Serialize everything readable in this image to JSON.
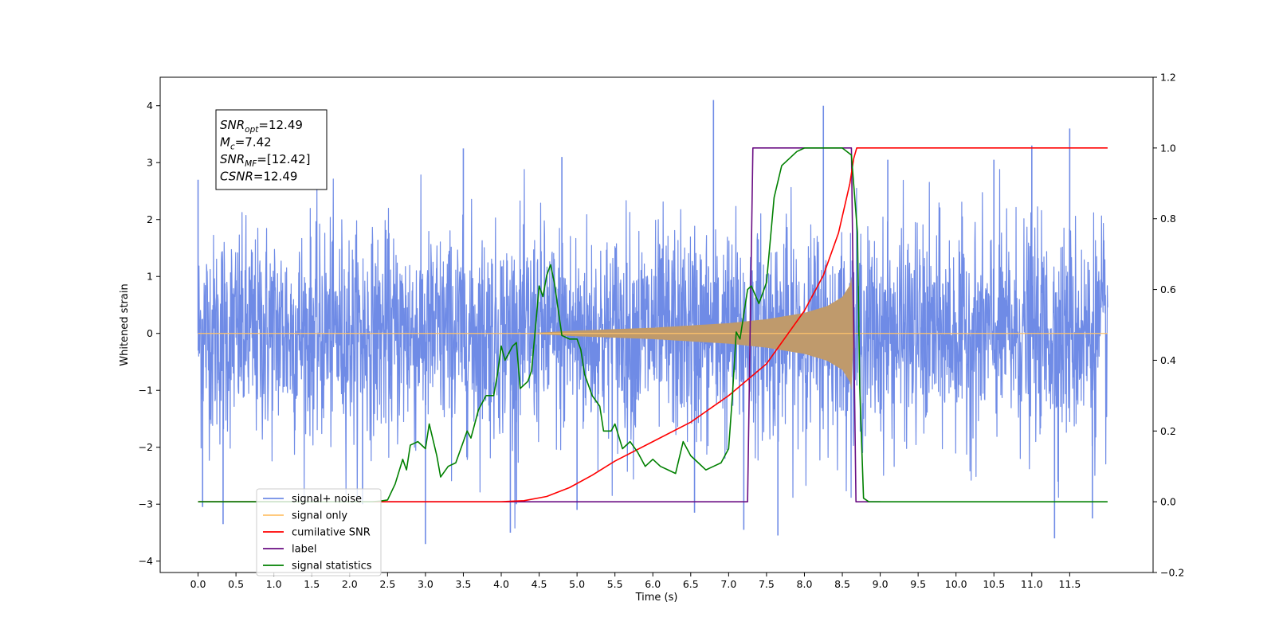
{
  "chart_data": {
    "type": "line",
    "xlabel": "Time (s)",
    "ylabel": "Whitened strain",
    "ylabel_right": "",
    "xlim": [
      -0.5,
      12.6
    ],
    "ylim": [
      -4.2,
      4.5
    ],
    "ylim_right": [
      -0.2,
      1.2
    ],
    "x_ticks": [
      0.0,
      0.5,
      1.0,
      1.5,
      2.0,
      2.5,
      3.0,
      3.5,
      4.0,
      4.5,
      5.0,
      5.5,
      6.0,
      6.5,
      7.0,
      7.5,
      8.0,
      8.5,
      9.0,
      9.5,
      10.0,
      10.5,
      11.0,
      11.5
    ],
    "x_tick_labels": [
      "0.0",
      "0.5",
      "1.0",
      "1.5",
      "2.0",
      "2.5",
      "3.0",
      "3.5",
      "4.0",
      "4.5",
      "5.0",
      "5.5",
      "6.0",
      "6.5",
      "7.0",
      "7.5",
      "8.0",
      "8.5",
      "9.0",
      "9.5",
      "10.0",
      "10.5",
      "11.0",
      "11.5"
    ],
    "y_ticks": [
      -4,
      -3,
      -2,
      -1,
      0,
      1,
      2,
      3,
      4
    ],
    "y_tick_labels": [
      "−4",
      "−3",
      "−2",
      "−1",
      "0",
      "1",
      "2",
      "3",
      "4"
    ],
    "y_right_ticks": [
      -0.2,
      0.0,
      0.2,
      0.4,
      0.6,
      0.8,
      1.0,
      1.2
    ],
    "y_right_tick_labels": [
      "−0.2",
      "0.0",
      "0.2",
      "0.4",
      "0.6",
      "0.8",
      "1.0",
      "1.2"
    ],
    "grid": false,
    "legend_position": "lower-left",
    "annotation_box": {
      "lines": [
        {
          "base": "SNR",
          "sub": "opt",
          "rest": "=12.49"
        },
        {
          "base": "M",
          "sub": "c",
          "rest": "=7.42"
        },
        {
          "base": "SNR",
          "sub": "MF",
          "rest": "=[12.42]"
        },
        {
          "base": "CSNR",
          "sub": "",
          "rest": "=12.49"
        }
      ]
    },
    "series": [
      {
        "name": "signal+ noise",
        "color": "#6f8be6",
        "axis": "left",
        "description_of_shape": "dense noise around 0, amplitude ~1.8 typical with spikes up to 4.1, from t=0 to t=12",
        "x_range": [
          0.0,
          12.0
        ],
        "noise_amplitude": 1.8,
        "spikes": [
          {
            "x": 0.0,
            "y": 2.7
          },
          {
            "x": 0.06,
            "y": -3.05
          },
          {
            "x": 0.33,
            "y": -3.35
          },
          {
            "x": 2.17,
            "y": -3.0
          },
          {
            "x": 3.0,
            "y": -3.7
          },
          {
            "x": 3.5,
            "y": 3.25
          },
          {
            "x": 4.12,
            "y": -3.5
          },
          {
            "x": 4.2,
            "y": -3.0
          },
          {
            "x": 4.8,
            "y": 3.1
          },
          {
            "x": 5.0,
            "y": -3.1
          },
          {
            "x": 6.8,
            "y": 4.1
          },
          {
            "x": 6.55,
            "y": -3.15
          },
          {
            "x": 7.2,
            "y": -3.45
          },
          {
            "x": 7.65,
            "y": -3.55
          },
          {
            "x": 8.25,
            "y": 4.0
          },
          {
            "x": 9.1,
            "y": 3.05
          },
          {
            "x": 10.5,
            "y": 3.05
          },
          {
            "x": 11.0,
            "y": 3.3
          },
          {
            "x": 11.5,
            "y": 3.6
          },
          {
            "x": 11.3,
            "y": -3.6
          },
          {
            "x": 11.8,
            "y": -3.25
          }
        ]
      },
      {
        "name": "signal only",
        "color": "#ffc36b",
        "fill_color": "#bf9a6c",
        "axis": "left",
        "description_of_shape": "chirp envelope near 0 growing from t~4.3 to amplitude ~1.0 at t~8.62, then abruptly zero",
        "envelope": [
          [
            0.0,
            0.0
          ],
          [
            4.3,
            0.0
          ],
          [
            5.0,
            0.05
          ],
          [
            6.0,
            0.1
          ],
          [
            7.0,
            0.18
          ],
          [
            7.5,
            0.25
          ],
          [
            8.0,
            0.36
          ],
          [
            8.3,
            0.48
          ],
          [
            8.5,
            0.64
          ],
          [
            8.6,
            0.85
          ],
          [
            8.62,
            1.0
          ],
          [
            8.65,
            0.0
          ],
          [
            12.0,
            0.0
          ]
        ]
      },
      {
        "name": "cumilative SNR",
        "color": "#ff0000",
        "axis": "right",
        "points": [
          [
            0.0,
            0.0
          ],
          [
            4.0,
            0.0
          ],
          [
            4.3,
            0.003
          ],
          [
            4.6,
            0.015
          ],
          [
            4.9,
            0.04
          ],
          [
            5.2,
            0.075
          ],
          [
            5.5,
            0.115
          ],
          [
            6.0,
            0.17
          ],
          [
            6.5,
            0.225
          ],
          [
            7.0,
            0.3
          ],
          [
            7.5,
            0.39
          ],
          [
            8.0,
            0.54
          ],
          [
            8.25,
            0.64
          ],
          [
            8.45,
            0.76
          ],
          [
            8.6,
            0.9
          ],
          [
            8.65,
            0.97
          ],
          [
            8.69,
            1.0
          ],
          [
            12.0,
            1.0
          ]
        ]
      },
      {
        "name": "label",
        "color": "#6a0d83",
        "axis": "right",
        "points": [
          [
            0.0,
            0.0
          ],
          [
            7.25,
            0.0
          ],
          [
            7.32,
            1.0
          ],
          [
            8.62,
            1.0
          ],
          [
            8.68,
            0.0
          ],
          [
            9.0,
            0.0
          ]
        ]
      },
      {
        "name": "signal statistics",
        "color": "#008000",
        "axis": "right",
        "points": [
          [
            0.0,
            0.0
          ],
          [
            2.3,
            0.0
          ],
          [
            2.4,
            0.002
          ],
          [
            2.5,
            0.005
          ],
          [
            2.6,
            0.05
          ],
          [
            2.7,
            0.12
          ],
          [
            2.75,
            0.09
          ],
          [
            2.8,
            0.16
          ],
          [
            2.9,
            0.17
          ],
          [
            3.0,
            0.15
          ],
          [
            3.05,
            0.22
          ],
          [
            3.15,
            0.13
          ],
          [
            3.2,
            0.07
          ],
          [
            3.3,
            0.1
          ],
          [
            3.4,
            0.11
          ],
          [
            3.5,
            0.17
          ],
          [
            3.55,
            0.2
          ],
          [
            3.6,
            0.18
          ],
          [
            3.7,
            0.26
          ],
          [
            3.8,
            0.3
          ],
          [
            3.9,
            0.3
          ],
          [
            3.95,
            0.36
          ],
          [
            4.0,
            0.44
          ],
          [
            4.05,
            0.4
          ],
          [
            4.15,
            0.44
          ],
          [
            4.2,
            0.45
          ],
          [
            4.25,
            0.32
          ],
          [
            4.35,
            0.34
          ],
          [
            4.4,
            0.37
          ],
          [
            4.5,
            0.61
          ],
          [
            4.55,
            0.58
          ],
          [
            4.6,
            0.64
          ],
          [
            4.65,
            0.67
          ],
          [
            4.7,
            0.62
          ],
          [
            4.8,
            0.47
          ],
          [
            4.9,
            0.46
          ],
          [
            5.0,
            0.46
          ],
          [
            5.05,
            0.43
          ],
          [
            5.1,
            0.36
          ],
          [
            5.2,
            0.3
          ],
          [
            5.3,
            0.27
          ],
          [
            5.35,
            0.2
          ],
          [
            5.45,
            0.2
          ],
          [
            5.5,
            0.22
          ],
          [
            5.6,
            0.15
          ],
          [
            5.7,
            0.17
          ],
          [
            5.8,
            0.14
          ],
          [
            5.9,
            0.1
          ],
          [
            6.0,
            0.12
          ],
          [
            6.1,
            0.1
          ],
          [
            6.2,
            0.09
          ],
          [
            6.3,
            0.08
          ],
          [
            6.4,
            0.17
          ],
          [
            6.5,
            0.13
          ],
          [
            6.6,
            0.11
          ],
          [
            6.7,
            0.09
          ],
          [
            6.8,
            0.1
          ],
          [
            6.9,
            0.11
          ],
          [
            7.0,
            0.15
          ],
          [
            7.05,
            0.3
          ],
          [
            7.1,
            0.48
          ],
          [
            7.15,
            0.46
          ],
          [
            7.25,
            0.6
          ],
          [
            7.3,
            0.61
          ],
          [
            7.4,
            0.56
          ],
          [
            7.5,
            0.62
          ],
          [
            7.6,
            0.86
          ],
          [
            7.7,
            0.95
          ],
          [
            7.8,
            0.97
          ],
          [
            7.9,
            0.99
          ],
          [
            8.0,
            1.0
          ],
          [
            8.5,
            1.0
          ],
          [
            8.62,
            0.98
          ],
          [
            8.7,
            0.76
          ],
          [
            8.73,
            0.32
          ],
          [
            8.78,
            0.01
          ],
          [
            8.85,
            0.0
          ],
          [
            12.0,
            0.0
          ]
        ]
      }
    ]
  }
}
